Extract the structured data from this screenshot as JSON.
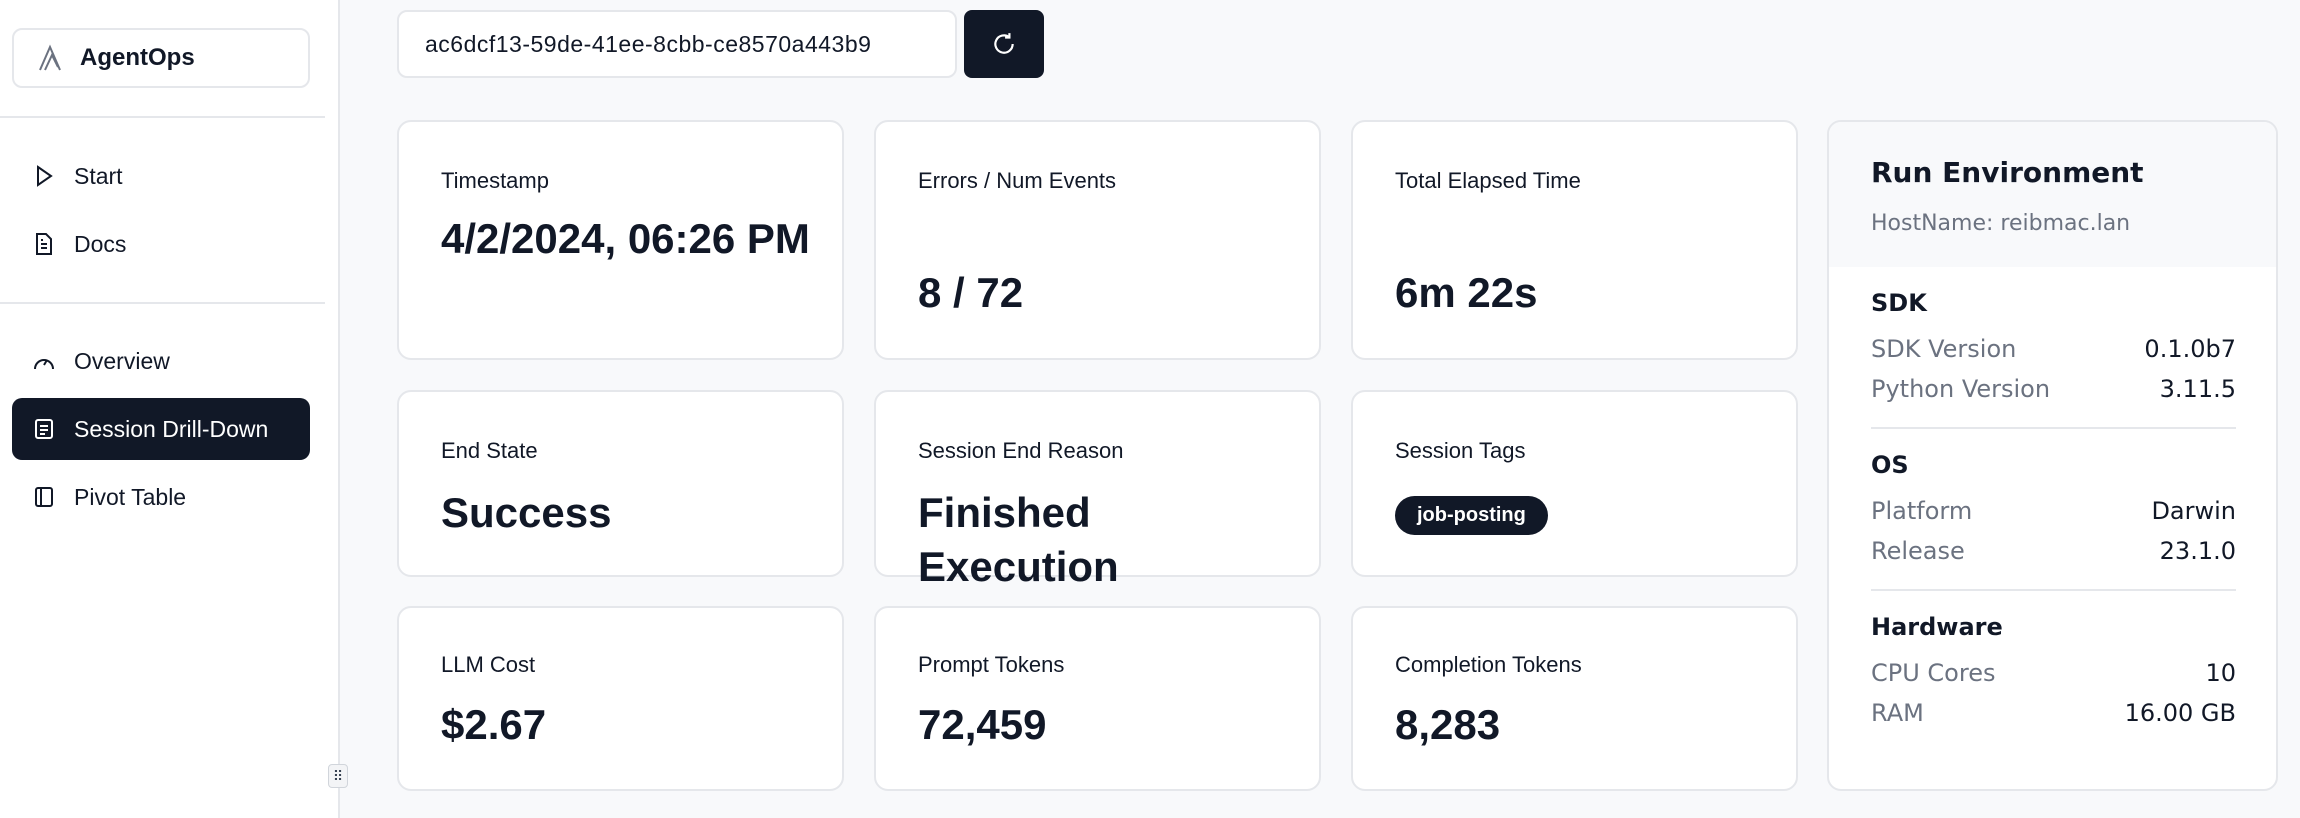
{
  "sidebar": {
    "brand": "AgentOps",
    "items": [
      {
        "label": "Start",
        "icon": "play-icon"
      },
      {
        "label": "Docs",
        "icon": "document-icon"
      },
      {
        "label": "Overview",
        "icon": "gauge-icon"
      },
      {
        "label": "Session Drill-Down",
        "icon": "list-icon",
        "active": true
      },
      {
        "label": "Pivot Table",
        "icon": "panel-icon"
      }
    ]
  },
  "session": {
    "id": "ac6dcf13-59de-41ee-8cbb-ce8570a443b9",
    "refresh_icon": "refresh-icon"
  },
  "cards": [
    {
      "label": "Timestamp",
      "value": "4/2/2024, 06:26 PM"
    },
    {
      "label": "Errors / Num Events",
      "value": "8 / 72"
    },
    {
      "label": "Total Elapsed Time",
      "value": "6m 22s"
    },
    {
      "label": "End State",
      "value": "Success"
    },
    {
      "label": "Session End Reason",
      "value": "Finished Execution"
    },
    {
      "label": "Session Tags",
      "tags": [
        "job-posting"
      ]
    },
    {
      "label": "LLM Cost",
      "value": "$2.67"
    },
    {
      "label": "Prompt Tokens",
      "value": "72,459"
    },
    {
      "label": "Completion Tokens",
      "value": "8,283"
    }
  ],
  "environment": {
    "title": "Run Environment",
    "hostname": "HostName: reibmac.lan",
    "sections": [
      {
        "title": "SDK",
        "rows": [
          {
            "k": "SDK Version",
            "v": "0.1.0b7"
          },
          {
            "k": "Python Version",
            "v": "3.11.5"
          }
        ]
      },
      {
        "title": "OS",
        "rows": [
          {
            "k": "Platform",
            "v": "Darwin"
          },
          {
            "k": "Release",
            "v": "23.1.0"
          }
        ]
      },
      {
        "title": "Hardware",
        "rows": [
          {
            "k": "CPU Cores",
            "v": "10"
          },
          {
            "k": "RAM",
            "v": "16.00 GB"
          }
        ]
      }
    ]
  },
  "colors": {
    "primary": "#111827",
    "muted": "#6b7280",
    "border": "#e5e7eb",
    "background": "#f8f9fb"
  }
}
